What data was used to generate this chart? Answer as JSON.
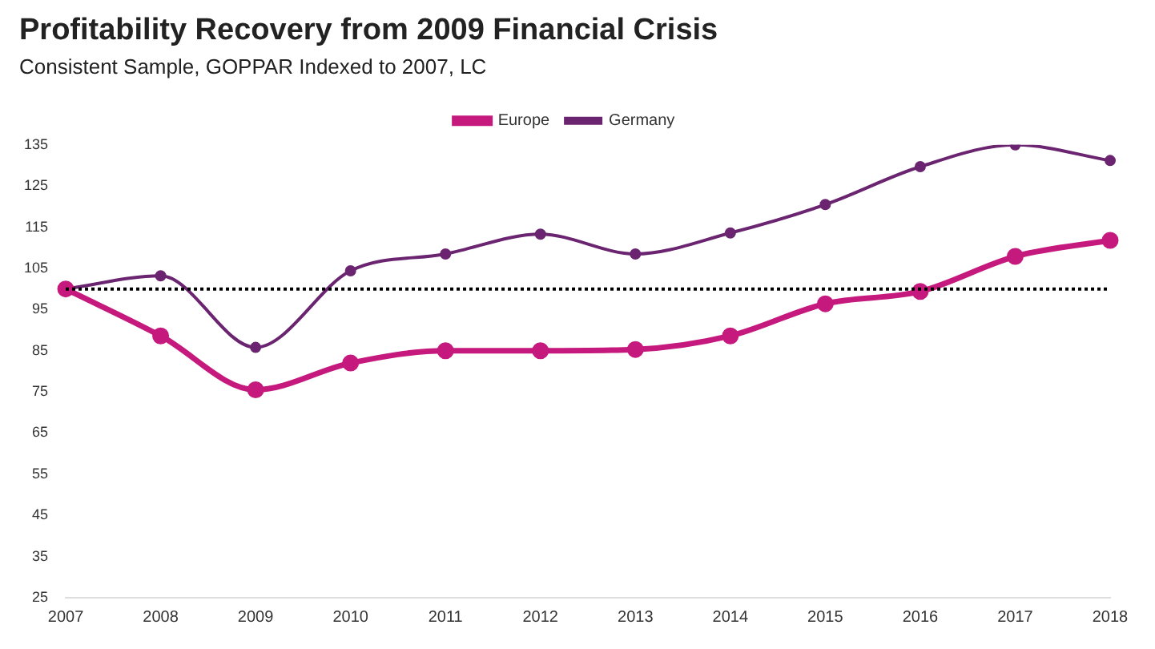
{
  "chart_data": {
    "type": "line",
    "title": "Profitability Recovery from 2009 Financial Crisis",
    "subtitle": "Consistent Sample, GOPPAR Indexed to 2007, LC",
    "categories": [
      "2007",
      "2008",
      "2009",
      "2010",
      "2011",
      "2012",
      "2013",
      "2014",
      "2015",
      "2016",
      "2017",
      "2018"
    ],
    "series": [
      {
        "name": "Europe",
        "color": "#c5197d",
        "values": [
          100,
          88.6,
          75.5,
          82,
          85,
          85,
          85.3,
          88.6,
          96.4,
          99.4,
          107.9,
          111.8
        ]
      },
      {
        "name": "Germany",
        "color": "#6b2470",
        "values": [
          100,
          103.2,
          85.8,
          104.4,
          108.5,
          113.3,
          108.5,
          113.6,
          120.5,
          129.7,
          135,
          131.2
        ]
      }
    ],
    "ylim": [
      25,
      135
    ],
    "yticks": [
      25,
      35,
      45,
      55,
      65,
      75,
      85,
      95,
      105,
      115,
      125,
      135
    ],
    "ref_lines": [
      {
        "axis": "y",
        "value": 100,
        "color": "#000000",
        "line_style": "dotted"
      }
    ],
    "grid": false,
    "legend": "top",
    "marker": "circle",
    "line_style": "solid"
  }
}
